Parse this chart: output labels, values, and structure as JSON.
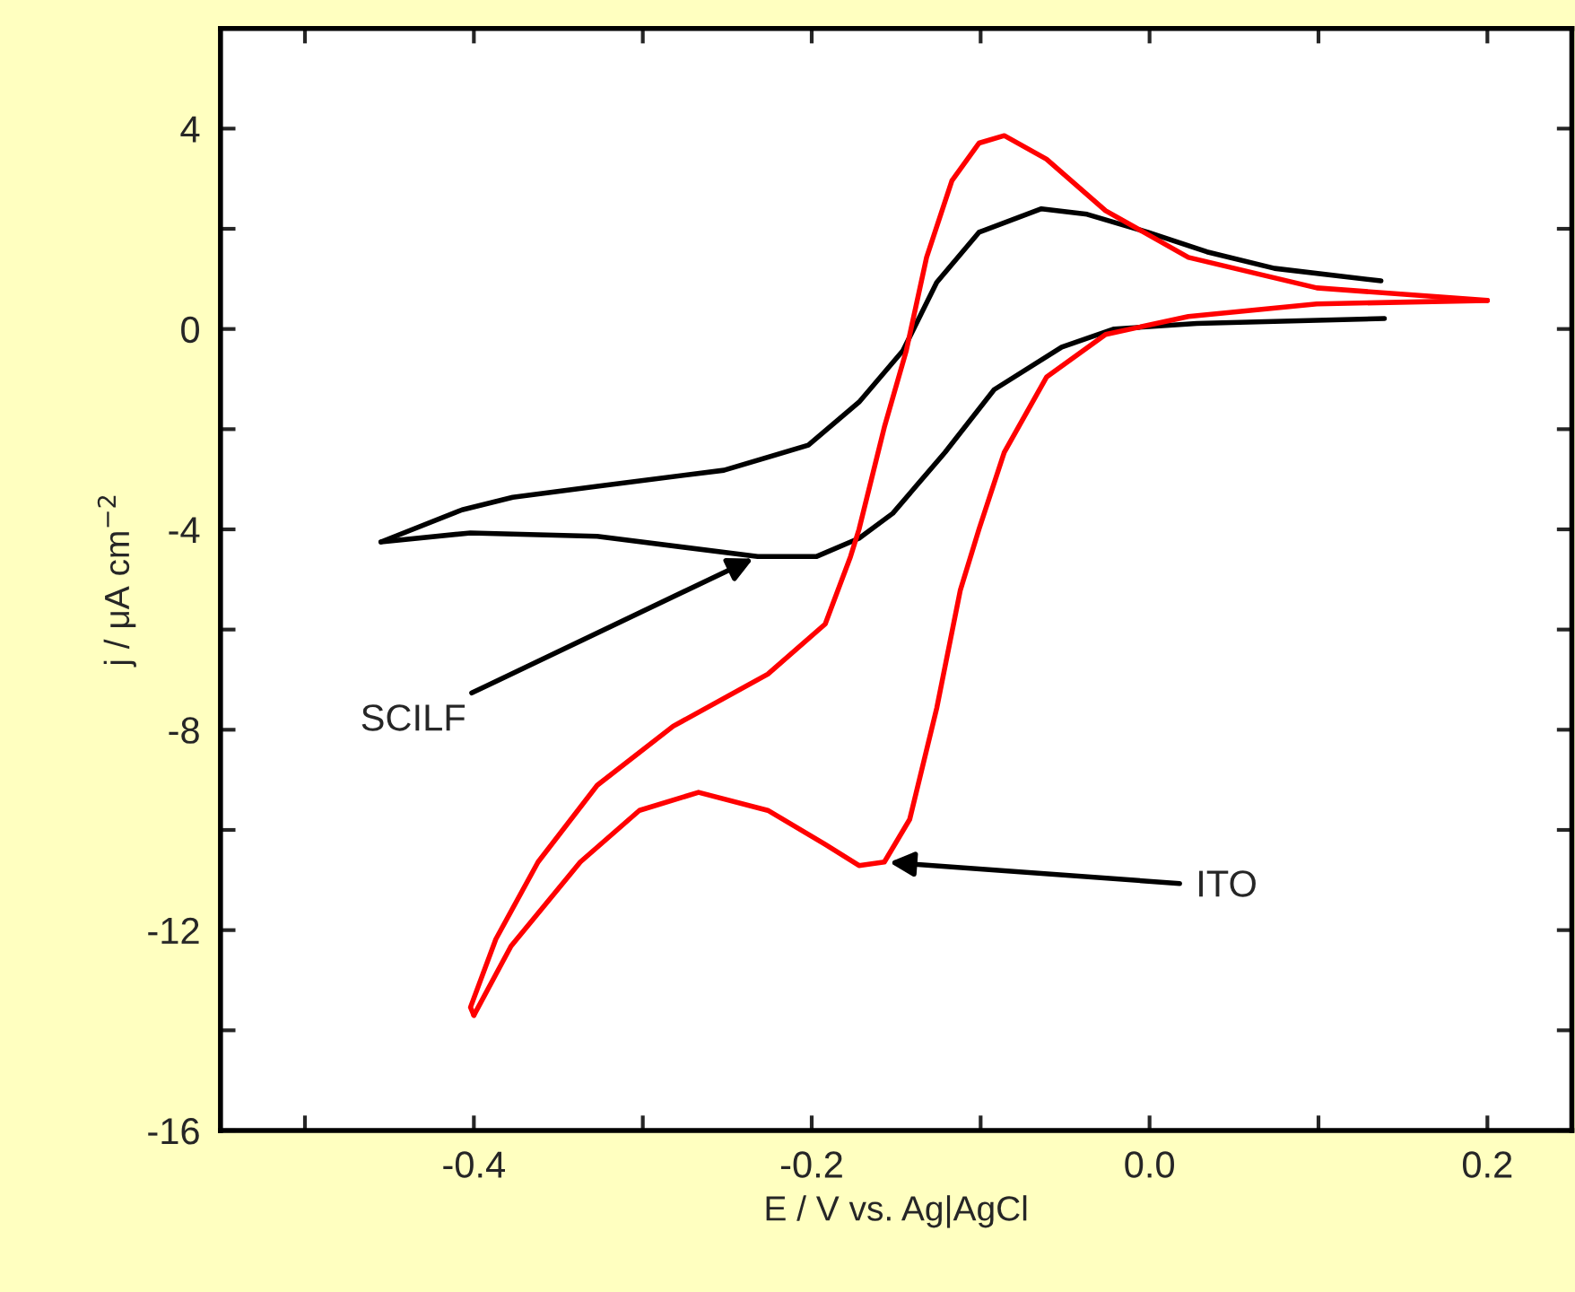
{
  "chart_data": {
    "type": "line",
    "xlabel": "E / V vs. Ag|AgCl",
    "ylabel": "j / μA cm$^{−2}$",
    "xlim": [
      -0.55,
      0.25
    ],
    "ylim": [
      -16,
      6
    ],
    "xticks": [
      {
        "value": -0.5,
        "label": null
      },
      {
        "value": -0.4,
        "label": "-0.4"
      },
      {
        "value": -0.3,
        "label": null
      },
      {
        "value": -0.2,
        "label": "-0.2"
      },
      {
        "value": -0.1,
        "label": null
      },
      {
        "value": 0.0,
        "label": "0.0"
      },
      {
        "value": 0.1,
        "label": null
      },
      {
        "value": 0.2,
        "label": "0.2"
      }
    ],
    "yticks": [
      -16,
      {
        "value": -14,
        "label": null
      },
      -12,
      {
        "value": -10,
        "label": null
      },
      -8,
      {
        "value": -6,
        "label": null
      },
      -4,
      {
        "value": -2,
        "label": null
      },
      0,
      {
        "value": 2,
        "label": null
      },
      4
    ],
    "grid": false,
    "legend": false,
    "line_style": "solid",
    "marker": "none",
    "series": [
      {
        "color": "#000000",
        "x": [
          0.137,
          0.074,
          0.034,
          -0.001,
          -0.037,
          -0.064,
          -0.101,
          -0.126,
          -0.146,
          -0.172,
          -0.202,
          -0.252,
          -0.327,
          -0.377,
          -0.407,
          -0.455
        ],
        "values": [
          0.96,
          1.21,
          1.54,
          1.93,
          2.29,
          2.4,
          1.93,
          0.93,
          -0.43,
          -1.46,
          -2.32,
          -2.82,
          -3.14,
          -3.36,
          -3.61,
          -4.25
        ]
      },
      {
        "color": "#000000",
        "x": [
          -0.455,
          -0.402,
          -0.327,
          -0.232,
          -0.197,
          -0.172,
          -0.152,
          -0.121,
          -0.092,
          -0.052,
          -0.021,
          0.028,
          0.139
        ],
        "values": [
          -4.25,
          -4.07,
          -4.14,
          -4.54,
          -4.54,
          -4.18,
          -3.68,
          -2.46,
          -1.21,
          -0.36,
          0.0,
          0.11,
          0.21
        ]
      },
      {
        "color": "#ff0000",
        "x": [
          0.2,
          0.099,
          0.023,
          -0.026,
          -0.061,
          -0.086,
          -0.101,
          -0.117,
          -0.132,
          -0.144,
          -0.157,
          -0.172,
          -0.177,
          -0.192,
          -0.226,
          -0.282,
          -0.327,
          -0.362,
          -0.387,
          -0.402,
          -0.4
        ],
        "values": [
          0.57,
          0.82,
          1.43,
          2.36,
          3.39,
          3.86,
          3.71,
          2.96,
          1.43,
          -0.43,
          -1.96,
          -4.0,
          -4.54,
          -5.89,
          -6.89,
          -7.93,
          -9.11,
          -10.64,
          -12.18,
          -13.54,
          -13.7
        ]
      },
      {
        "color": "#ff0000",
        "x": [
          -0.4,
          -0.378,
          -0.337,
          -0.302,
          -0.267,
          -0.226,
          -0.192,
          -0.172,
          -0.157,
          -0.142,
          -0.126,
          -0.112,
          -0.101,
          -0.086,
          -0.061,
          -0.026,
          0.023,
          0.099,
          0.2
        ],
        "values": [
          -13.7,
          -12.32,
          -10.64,
          -9.61,
          -9.25,
          -9.61,
          -10.29,
          -10.71,
          -10.64,
          -9.79,
          -7.57,
          -5.21,
          -4.0,
          -2.46,
          -0.96,
          -0.11,
          0.25,
          0.5,
          0.57
        ]
      }
    ],
    "annotations": [
      {
        "text": "SCILF",
        "x": -0.232,
        "y": -4.54
      },
      {
        "text": "ITO",
        "x": -0.157,
        "y": -10.64
      }
    ]
  }
}
